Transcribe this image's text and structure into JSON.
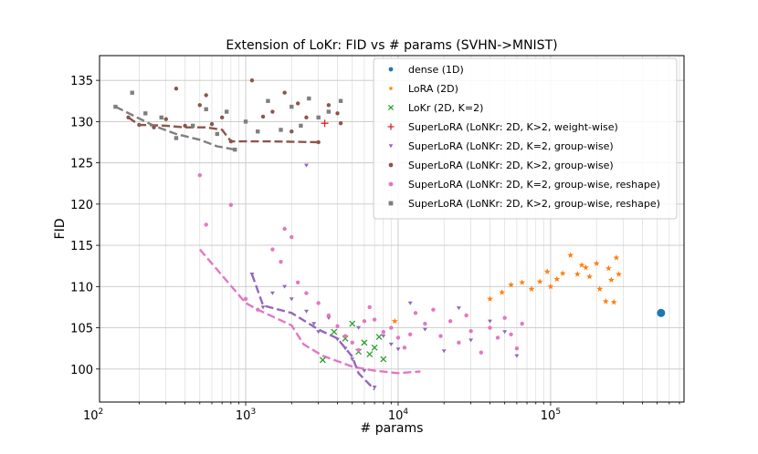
{
  "chart_data": {
    "type": "scatter",
    "title": "Extension of LoKr: FID vs # params (SVHN->MNIST)",
    "xlabel": "# params",
    "ylabel": "FID",
    "xscale": "log",
    "xlim": [
      110,
      750000
    ],
    "ylim": [
      96,
      138
    ],
    "x_ticks": [
      {
        "value": 100,
        "label": "10",
        "sup": "2"
      },
      {
        "value": 1000,
        "label": "10",
        "sup": "3"
      },
      {
        "value": 10000,
        "label": "10",
        "sup": "4"
      },
      {
        "value": 100000,
        "label": "10",
        "sup": "5"
      }
    ],
    "y_ticks": [
      100,
      105,
      110,
      115,
      120,
      125,
      130,
      135
    ],
    "grid": true,
    "legend_position": "upper right",
    "series": [
      {
        "name": "dense (1D)",
        "color": "#1f77b4",
        "marker": "circle",
        "points": [
          [
            530000,
            106.8
          ]
        ]
      },
      {
        "name": "LoRA (2D)",
        "color": "#ff7f0e",
        "marker": "star",
        "points": [
          [
            9500,
            105.8
          ],
          [
            40000,
            108.5
          ],
          [
            48000,
            109.3
          ],
          [
            55000,
            110.2
          ],
          [
            65000,
            110.5
          ],
          [
            75000,
            109.7
          ],
          [
            85000,
            110.6
          ],
          [
            95000,
            111.8
          ],
          [
            100000,
            110.0
          ],
          [
            110000,
            110.9
          ],
          [
            120000,
            111.6
          ],
          [
            135000,
            113.8
          ],
          [
            150000,
            111.5
          ],
          [
            160000,
            112.6
          ],
          [
            170000,
            112.3
          ],
          [
            180000,
            111.2
          ],
          [
            200000,
            112.8
          ],
          [
            210000,
            109.7
          ],
          [
            230000,
            108.2
          ],
          [
            240000,
            112.2
          ],
          [
            250000,
            110.8
          ],
          [
            260000,
            108.1
          ],
          [
            270000,
            113.5
          ],
          [
            280000,
            111.5
          ]
        ]
      },
      {
        "name": "LoKr (2D, K=2)",
        "color": "#2ca02c",
        "marker": "x",
        "points": [
          [
            3200,
            101.1
          ],
          [
            3800,
            104.5
          ],
          [
            4500,
            103.7
          ],
          [
            5000,
            105.5
          ],
          [
            5500,
            102.1
          ],
          [
            6000,
            103.2
          ],
          [
            6500,
            101.8
          ],
          [
            7000,
            102.6
          ],
          [
            7500,
            103.9
          ],
          [
            8000,
            101.2
          ]
        ]
      },
      {
        "name": "SuperLoRA (LoNKr: 2D, K>2, weight-wise)",
        "color": "#d62728",
        "marker": "plus",
        "points": [
          [
            3300,
            129.8
          ]
        ]
      },
      {
        "name": "SuperLoRA (LoNKr: 2D, K=2, group-wise)",
        "color": "#9467bd",
        "marker": "triangle-down",
        "points": [
          [
            1100,
            111.5
          ],
          [
            1300,
            107.5
          ],
          [
            1500,
            109.2
          ],
          [
            1800,
            110.0
          ],
          [
            2000,
            108.5
          ],
          [
            2500,
            107.0
          ],
          [
            2500,
            124.7
          ],
          [
            2800,
            105.5
          ],
          [
            3000,
            104.5
          ],
          [
            3500,
            106.2
          ],
          [
            4000,
            103.6
          ],
          [
            4500,
            102.5
          ],
          [
            5000,
            101.2
          ],
          [
            5500,
            105.0
          ],
          [
            6000,
            99.8
          ],
          [
            7000,
            97.8
          ],
          [
            8000,
            104.0
          ],
          [
            9000,
            103.0
          ],
          [
            10000,
            102.4
          ],
          [
            12000,
            108.0
          ],
          [
            15000,
            104.8
          ],
          [
            20000,
            102.2
          ],
          [
            25000,
            107.4
          ],
          [
            30000,
            103.5
          ],
          [
            40000,
            105.8
          ],
          [
            50000,
            104.5
          ],
          [
            60000,
            101.6
          ]
        ]
      },
      {
        "name": "SuperLoRA (LoNKr: 2D, K>2, group-wise)",
        "color": "#8c564b",
        "marker": "circle",
        "points": [
          [
            170,
            130.5
          ],
          [
            200,
            129.6
          ],
          [
            250,
            129.3
          ],
          [
            300,
            130.3
          ],
          [
            350,
            134.0
          ],
          [
            400,
            129.5
          ],
          [
            500,
            132.0
          ],
          [
            550,
            133.2
          ],
          [
            600,
            129.7
          ],
          [
            700,
            130.5
          ],
          [
            800,
            127.6
          ],
          [
            1100,
            135.0
          ],
          [
            1300,
            130.6
          ],
          [
            1500,
            131.2
          ],
          [
            1800,
            133.5
          ],
          [
            2000,
            128.8
          ],
          [
            2200,
            132.2
          ],
          [
            2500,
            130.5
          ],
          [
            3000,
            127.5
          ],
          [
            3500,
            132.0
          ],
          [
            4000,
            131.0
          ],
          [
            4200,
            129.8
          ]
        ]
      },
      {
        "name": "SuperLoRA (LoNKr: 2D, K=2, group-wise, reshape)",
        "color": "#e377c2",
        "marker": "circle",
        "points": [
          [
            500,
            123.5
          ],
          [
            550,
            117.5
          ],
          [
            800,
            119.9
          ],
          [
            1000,
            108.5
          ],
          [
            1200,
            107.2
          ],
          [
            1500,
            114.5
          ],
          [
            1700,
            113.0
          ],
          [
            1800,
            117.0
          ],
          [
            2000,
            116.0
          ],
          [
            2200,
            110.5
          ],
          [
            2500,
            109.2
          ],
          [
            3000,
            108.0
          ],
          [
            3500,
            106.5
          ],
          [
            4000,
            105.2
          ],
          [
            4500,
            104.0
          ],
          [
            5000,
            103.2
          ],
          [
            5500,
            102.3
          ],
          [
            6000,
            105.8
          ],
          [
            6500,
            107.5
          ],
          [
            7000,
            106.0
          ],
          [
            8000,
            104.5
          ],
          [
            9000,
            105.0
          ],
          [
            10000,
            103.8
          ],
          [
            11000,
            102.6
          ],
          [
            12000,
            104.2
          ],
          [
            13000,
            106.8
          ],
          [
            15000,
            105.5
          ],
          [
            17000,
            107.2
          ],
          [
            19000,
            104.0
          ],
          [
            22000,
            105.8
          ],
          [
            25000,
            103.2
          ],
          [
            28000,
            106.5
          ],
          [
            30000,
            104.6
          ],
          [
            35000,
            102.0
          ],
          [
            40000,
            105.0
          ],
          [
            45000,
            103.8
          ],
          [
            50000,
            106.2
          ],
          [
            55000,
            104.2
          ],
          [
            60000,
            102.5
          ],
          [
            65000,
            105.5
          ]
        ]
      },
      {
        "name": "SuperLoRA (LoNKr: 2D, K>2, group-wise, reshape)",
        "color": "#7f7f7f",
        "marker": "square",
        "points": [
          [
            140,
            131.8
          ],
          [
            180,
            133.5
          ],
          [
            220,
            131.0
          ],
          [
            280,
            130.5
          ],
          [
            350,
            128.0
          ],
          [
            450,
            129.5
          ],
          [
            550,
            131.5
          ],
          [
            650,
            128.5
          ],
          [
            750,
            131.2
          ],
          [
            850,
            126.6
          ],
          [
            1000,
            130.0
          ],
          [
            1200,
            128.8
          ],
          [
            1400,
            132.5
          ],
          [
            1700,
            129.0
          ],
          [
            2000,
            131.8
          ],
          [
            2300,
            129.5
          ],
          [
            2600,
            132.8
          ],
          [
            3000,
            130.5
          ],
          [
            3500,
            131.2
          ],
          [
            4200,
            132.5
          ]
        ]
      }
    ],
    "trend_lines": [
      {
        "color": "#e377c2",
        "points": [
          [
            500,
            114.5
          ],
          [
            1000,
            108.0
          ],
          [
            1200,
            107.2
          ],
          [
            2000,
            105.3
          ],
          [
            2400,
            103.0
          ],
          [
            3200,
            101.6
          ],
          [
            5000,
            100.3
          ],
          [
            7000,
            99.8
          ],
          [
            10000,
            99.5
          ],
          [
            14000,
            99.7
          ]
        ]
      },
      {
        "color": "#9467bd",
        "points": [
          [
            1100,
            111.5
          ],
          [
            1300,
            107.7
          ],
          [
            2000,
            106.8
          ],
          [
            3000,
            104.8
          ],
          [
            4000,
            103.7
          ],
          [
            5000,
            101.5
          ],
          [
            5500,
            99.5
          ],
          [
            7000,
            97.5
          ]
        ]
      },
      {
        "color": "#8c564b",
        "points": [
          [
            170,
            130.5
          ],
          [
            200,
            129.6
          ],
          [
            300,
            129.5
          ],
          [
            400,
            129.3
          ],
          [
            550,
            129.3
          ],
          [
            700,
            129.0
          ],
          [
            800,
            127.6
          ],
          [
            1500,
            127.6
          ],
          [
            3000,
            127.5
          ]
        ]
      },
      {
        "color": "#7f7f7f",
        "points": [
          [
            140,
            131.8
          ],
          [
            250,
            129.5
          ],
          [
            350,
            128.5
          ],
          [
            500,
            127.8
          ],
          [
            650,
            127.0
          ],
          [
            850,
            126.6
          ]
        ]
      }
    ]
  }
}
